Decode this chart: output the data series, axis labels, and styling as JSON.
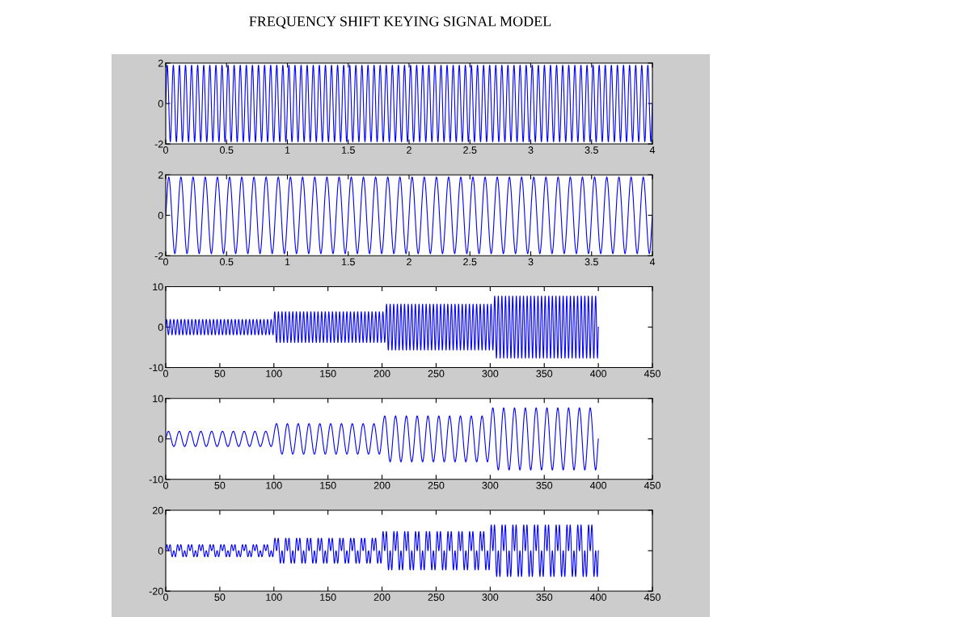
{
  "chart_data": [
    {
      "type": "line",
      "title": "FREQUENCY SHIFT KEYING SIGNAL MODEL",
      "xlim": [
        0,
        4
      ],
      "ylim": [
        -2,
        2
      ],
      "xticks": [
        0,
        0.5,
        1,
        1.5,
        2,
        2.5,
        3,
        3.5,
        4
      ],
      "yticks": [
        -2,
        0,
        2
      ],
      "line_style": "solid",
      "x": [
        0,
        0.0125,
        0.0375,
        0.0625,
        0.0875,
        0.1125,
        0.1375,
        0.1625,
        0.1875,
        0.2125,
        0.2375,
        0.2625,
        0.2875,
        0.3125,
        0.3375,
        0.3625,
        0.3875,
        0.4125,
        0.4375,
        0.4625,
        0.4875,
        0.5125,
        0.5375,
        0.5625,
        0.5875,
        0.6125,
        0.6375,
        0.6625,
        0.6875,
        0.7125,
        0.7375,
        0.7625,
        0.7875,
        0.8125,
        0.8375,
        0.8625,
        0.8875,
        0.9125,
        0.9375,
        0.9625,
        0.9875,
        1.0125,
        1.0375,
        1.0625,
        1.0875,
        1.1125,
        1.1375,
        1.1625,
        1.1875,
        1.2125,
        1.2375,
        1.2625,
        1.2875,
        1.3125,
        1.3375,
        1.3625,
        1.3875,
        1.4125,
        1.4375,
        1.4625,
        1.4875,
        1.5125,
        1.5375,
        1.5625,
        1.5875,
        1.6125,
        1.6375,
        1.6625,
        1.6875,
        1.7125,
        1.7375,
        1.7625,
        1.7875,
        1.8125,
        1.8375,
        1.8625,
        1.8875,
        1.9125,
        1.9375,
        1.9625,
        1.9875,
        2.0125,
        2.0375,
        2.0625,
        2.0875,
        2.1125,
        2.1375,
        2.1625,
        2.1875,
        2.2125,
        2.2375,
        2.2625,
        2.2875,
        2.3125,
        2.3375,
        2.3625,
        2.3875,
        2.4125,
        2.4375,
        2.4625,
        2.4875,
        2.5125,
        2.5375,
        2.5625,
        2.5875,
        2.6125,
        2.6375,
        2.6625,
        2.6875,
        2.7125,
        2.7375,
        2.7625,
        2.7875,
        2.8125,
        2.8375,
        2.8625,
        2.8875,
        2.9125,
        2.9375,
        2.9625,
        2.9875,
        3.0125,
        3.0375,
        3.0625,
        3.0875,
        3.1125,
        3.1375,
        3.1625,
        3.1875,
        3.2125,
        3.2375,
        3.2625,
        3.2875,
        3.3125,
        3.3375,
        3.3625,
        3.3875,
        3.4125,
        3.4375,
        3.4625,
        3.4875,
        3.5125,
        3.5375,
        3.5625,
        3.5875,
        3.6125,
        3.6375,
        3.6625,
        3.6875,
        3.7125,
        3.7375,
        3.7625,
        3.7875,
        3.8125,
        3.8375,
        3.8625,
        3.8875,
        3.9125,
        3.9375,
        3.9625,
        3.9875,
        4
      ],
      "series": [
        {
          "color": "#0000ff",
          "values": [
            0,
            1.9,
            -1.9,
            1.9,
            -1.9,
            1.9,
            -1.9,
            1.9,
            -1.9,
            1.9,
            -1.9,
            1.9,
            -1.9,
            1.9,
            -1.9,
            1.9,
            -1.9,
            1.9,
            -1.9,
            1.9,
            -1.9,
            1.9,
            -1.9,
            1.9,
            -1.9,
            1.9,
            -1.9,
            1.9,
            -1.9,
            1.9,
            -1.9,
            1.9,
            -1.9,
            1.9,
            -1.9,
            1.9,
            -1.9,
            1.9,
            -1.9,
            1.9,
            -1.9,
            1.9,
            -1.9,
            1.9,
            -1.9,
            1.9,
            -1.9,
            1.9,
            -1.9,
            1.9,
            -1.9,
            1.9,
            -1.9,
            1.9,
            -1.9,
            1.9,
            -1.9,
            1.9,
            -1.9,
            1.9,
            -1.9,
            1.9,
            -1.9,
            1.9,
            -1.9,
            1.9,
            -1.9,
            1.9,
            -1.9,
            1.9,
            -1.9,
            1.9,
            -1.9,
            1.9,
            -1.9,
            1.9,
            -1.9,
            1.9,
            -1.9,
            1.9,
            -1.9,
            1.9,
            -1.9,
            1.9,
            -1.9,
            1.9,
            -1.9,
            1.9,
            -1.9,
            1.9,
            -1.9,
            1.9,
            -1.9,
            1.9,
            -1.9,
            1.9,
            -1.9,
            1.9,
            -1.9,
            1.9,
            -1.9,
            1.9,
            -1.9,
            1.9,
            -1.9,
            1.9,
            -1.9,
            1.9,
            -1.9,
            1.9,
            -1.9,
            1.9,
            -1.9,
            1.9,
            -1.9,
            1.9,
            -1.9,
            1.9,
            -1.9,
            1.9,
            -1.9,
            1.9,
            -1.9,
            1.9,
            -1.9,
            1.9,
            -1.9,
            1.9,
            -1.9,
            1.9,
            -1.9,
            1.9,
            -1.9,
            1.9,
            -1.9,
            1.9,
            -1.9,
            1.9,
            -1.9,
            1.9,
            -1.9,
            1.9,
            -1.9,
            1.9,
            -1.9,
            1.9,
            -1.9,
            1.9,
            -1.9,
            1.9,
            -1.9,
            1.9,
            -1.9,
            1.9,
            -1.9,
            1.9,
            -1.9,
            1.9,
            -1.9,
            1.9,
            -1.9,
            0
          ]
        }
      ]
    },
    {
      "type": "line",
      "xlim": [
        0,
        4
      ],
      "ylim": [
        -2,
        2
      ],
      "xticks": [
        0,
        0.5,
        1,
        1.5,
        2,
        2.5,
        3,
        3.5,
        4
      ],
      "yticks": [
        -2,
        0,
        2
      ],
      "line_style": "solid",
      "x": [
        0,
        0.025,
        0.075,
        0.125,
        0.175,
        0.225,
        0.275,
        0.325,
        0.375,
        0.425,
        0.475,
        0.525,
        0.575,
        0.625,
        0.675,
        0.725,
        0.775,
        0.825,
        0.875,
        0.925,
        0.975,
        1.025,
        1.075,
        1.125,
        1.175,
        1.225,
        1.275,
        1.325,
        1.375,
        1.425,
        1.475,
        1.525,
        1.575,
        1.625,
        1.675,
        1.725,
        1.775,
        1.825,
        1.875,
        1.925,
        1.975,
        2.025,
        2.075,
        2.125,
        2.175,
        2.225,
        2.275,
        2.325,
        2.375,
        2.425,
        2.475,
        2.525,
        2.575,
        2.625,
        2.675,
        2.725,
        2.775,
        2.825,
        2.875,
        2.925,
        2.975,
        3.025,
        3.075,
        3.125,
        3.175,
        3.225,
        3.275,
        3.325,
        3.375,
        3.425,
        3.475,
        3.525,
        3.575,
        3.625,
        3.675,
        3.725,
        3.775,
        3.825,
        3.875,
        3.925,
        3.975,
        4
      ],
      "series": [
        {
          "color": "#0000ff",
          "values": [
            0,
            1.9,
            -1.9,
            1.9,
            -1.9,
            1.9,
            -1.9,
            1.9,
            -1.9,
            1.9,
            -1.9,
            1.9,
            -1.9,
            1.9,
            -1.9,
            1.9,
            -1.9,
            1.9,
            -1.9,
            1.9,
            -1.9,
            1.9,
            -1.9,
            1.9,
            -1.9,
            1.9,
            -1.9,
            1.9,
            -1.9,
            1.9,
            -1.9,
            1.9,
            -1.9,
            1.9,
            -1.9,
            1.9,
            -1.9,
            1.9,
            -1.9,
            1.9,
            -1.9,
            1.9,
            -1.9,
            1.9,
            -1.9,
            1.9,
            -1.9,
            1.9,
            -1.9,
            1.9,
            -1.9,
            1.9,
            -1.9,
            1.9,
            -1.9,
            1.9,
            -1.9,
            1.9,
            -1.9,
            1.9,
            -1.9,
            1.9,
            -1.9,
            1.9,
            -1.9,
            1.9,
            -1.9,
            1.9,
            -1.9,
            1.9,
            -1.9,
            1.9,
            -1.9,
            1.9,
            -1.9,
            1.9,
            -1.9,
            1.9,
            -1.9,
            1.9,
            -1.9,
            0
          ]
        }
      ]
    },
    {
      "type": "line",
      "xlim": [
        0,
        450
      ],
      "ylim": [
        -10,
        10
      ],
      "xticks": [
        0,
        50,
        100,
        150,
        200,
        250,
        300,
        350,
        400,
        450
      ],
      "yticks": [
        -10,
        0,
        10
      ],
      "line_style": "solid",
      "x": [
        0,
        0.8,
        2.5,
        4.2,
        5.8,
        7.5,
        9.2,
        10.8,
        12.5,
        14.2,
        15.8,
        17.5,
        19.2,
        20.8,
        22.5,
        24.2,
        25.8,
        27.5,
        29.2,
        30.8,
        32.5,
        34.2,
        35.8,
        37.5,
        39.2,
        40.8,
        42.5,
        44.2,
        45.8,
        47.5,
        49.2,
        50.8,
        52.5,
        54.2,
        55.8,
        57.5,
        59.2,
        60.8,
        62.5,
        64.2,
        65.8,
        67.5,
        69.2,
        70.8,
        72.5,
        74.2,
        75.8,
        77.5,
        79.2,
        80.8,
        82.5,
        84.2,
        85.8,
        87.5,
        89.2,
        90.8,
        92.5,
        94.2,
        95.8,
        97.5,
        99.2,
        100.8,
        102.5,
        104.2,
        105.8,
        107.5,
        109.2,
        110.8,
        112.5,
        114.2,
        115.8,
        117.5,
        119.2,
        120.8,
        122.5,
        124.2,
        125.8,
        127.5,
        129.2,
        130.8,
        132.5,
        134.2,
        135.8,
        137.5,
        139.2,
        140.8,
        142.5,
        144.2,
        145.8,
        147.5,
        149.2,
        150.8,
        152.5,
        154.2,
        155.8,
        157.5,
        159.2,
        160.8,
        162.5,
        164.2,
        165.8,
        167.5,
        169.2,
        170.8,
        172.5,
        174.2,
        175.8,
        177.5,
        179.2,
        180.8,
        182.5,
        184.2,
        185.8,
        187.5,
        189.2,
        190.8,
        192.5,
        194.2,
        195.8,
        197.5,
        199.2,
        200.8,
        202.5,
        204.2,
        205.8,
        207.5,
        209.2,
        210.8,
        212.5,
        214.2,
        215.8,
        217.5,
        219.2,
        220.8,
        222.5,
        224.2,
        225.8,
        227.5,
        229.2,
        230.8,
        232.5,
        234.2,
        235.8,
        237.5,
        239.2,
        240.8,
        242.5,
        244.2,
        245.8,
        247.5,
        249.2,
        250.8,
        252.5,
        254.2,
        255.8,
        257.5,
        259.2,
        260.8,
        262.5,
        264.2,
        265.8,
        267.5,
        269.2,
        270.8,
        272.5,
        274.2,
        275.8,
        277.5,
        279.2,
        280.8,
        282.5,
        284.2,
        285.8,
        287.5,
        289.2,
        290.8,
        292.5,
        294.2,
        295.8,
        297.5,
        299.2,
        300.8,
        302.5,
        304.2,
        305.8,
        307.5,
        309.2,
        310.8,
        312.5,
        314.2,
        315.8,
        317.5,
        319.2,
        320.8,
        322.5,
        324.2,
        325.8,
        327.5,
        329.2,
        330.8,
        332.5,
        334.2,
        335.8,
        337.5,
        339.2,
        340.8,
        342.5,
        344.2,
        345.8,
        347.5,
        349.2,
        350.8,
        352.5,
        354.2,
        355.8,
        357.5,
        359.2,
        360.8,
        362.5,
        364.2,
        365.8,
        367.5,
        369.2,
        370.8,
        372.5,
        374.2,
        375.8,
        377.5,
        379.2,
        380.8,
        382.5,
        384.2,
        385.8,
        387.5,
        389.2,
        390.8,
        392.5,
        394.2,
        395.8,
        397.5,
        399.2,
        400
      ],
      "series": [
        {
          "color": "#0000ff",
          "values": [
            0,
            1.9,
            -1.9,
            1.9,
            -1.9,
            1.9,
            -1.9,
            1.9,
            -1.9,
            1.9,
            -1.9,
            1.9,
            -1.9,
            1.9,
            -1.9,
            1.9,
            -1.9,
            1.9,
            -1.9,
            1.9,
            -1.9,
            1.9,
            -1.9,
            1.9,
            -1.9,
            1.9,
            -1.9,
            1.9,
            -1.9,
            1.9,
            -1.9,
            1.9,
            -1.9,
            1.9,
            -1.9,
            1.9,
            -1.9,
            1.9,
            -1.9,
            1.9,
            -1.9,
            1.9,
            -1.9,
            1.9,
            -1.9,
            1.9,
            -1.9,
            1.9,
            -1.9,
            1.9,
            -1.9,
            1.9,
            -1.9,
            1.9,
            -1.9,
            1.9,
            -1.9,
            1.9,
            -1.9,
            1.9,
            -1.9,
            3.8,
            -3.8,
            3.8,
            -3.8,
            3.8,
            -3.8,
            3.8,
            -3.8,
            3.8,
            -3.8,
            3.8,
            -3.8,
            3.8,
            -3.8,
            3.8,
            -3.8,
            3.8,
            -3.8,
            3.8,
            -3.8,
            3.8,
            -3.8,
            3.8,
            -3.8,
            3.8,
            -3.8,
            3.8,
            -3.8,
            3.8,
            -3.8,
            3.8,
            -3.8,
            3.8,
            -3.8,
            3.8,
            -3.8,
            3.8,
            -3.8,
            3.8,
            -3.8,
            3.8,
            -3.8,
            3.8,
            -3.8,
            3.8,
            -3.8,
            3.8,
            -3.8,
            3.8,
            -3.8,
            3.8,
            -3.8,
            3.8,
            -3.8,
            3.8,
            -3.8,
            3.8,
            -3.8,
            3.8,
            -3.8,
            3.8,
            -3.8,
            5.7,
            -5.7,
            5.7,
            -5.7,
            5.7,
            -5.7,
            5.7,
            -5.7,
            5.7,
            -5.7,
            5.7,
            -5.7,
            5.7,
            -5.7,
            5.7,
            -5.7,
            5.7,
            -5.7,
            5.7,
            -5.7,
            5.7,
            -5.7,
            5.7,
            -5.7,
            5.7,
            -5.7,
            5.7,
            -5.7,
            5.7,
            -5.7,
            5.7,
            -5.7,
            5.7,
            -5.7,
            5.7,
            -5.7,
            5.7,
            -5.7,
            5.7,
            -5.7,
            5.7,
            -5.7,
            5.7,
            -5.7,
            5.7,
            -5.7,
            5.7,
            -5.7,
            5.7,
            -5.7,
            5.7,
            -5.7,
            5.7,
            -5.7,
            5.7,
            -5.7,
            5.7,
            -5.7,
            5.7,
            -5.7,
            7.7,
            -7.7,
            7.7,
            -7.7,
            7.7,
            -7.7,
            7.7,
            -7.7,
            7.7,
            -7.7,
            7.7,
            -7.7,
            7.7,
            -7.7,
            7.7,
            -7.7,
            7.7,
            -7.7,
            7.7,
            -7.7,
            7.7,
            -7.7,
            7.7,
            -7.7,
            7.7,
            -7.7,
            7.7,
            -7.7,
            7.7,
            -7.7,
            7.7,
            -7.7,
            7.7,
            -7.7,
            7.7,
            -7.7,
            7.7,
            -7.7,
            7.7,
            -7.7,
            7.7,
            -7.7,
            7.7,
            -7.7,
            7.7,
            -7.7,
            7.7,
            -7.7,
            7.7,
            -7.7,
            7.7,
            -7.7,
            7.7,
            -7.7,
            7.7,
            -7.7,
            7.7,
            -7.7,
            0
          ]
        }
      ]
    },
    {
      "type": "line",
      "xlim": [
        0,
        450
      ],
      "ylim": [
        -10,
        10
      ],
      "xticks": [
        0,
        50,
        100,
        150,
        200,
        250,
        300,
        350,
        400,
        450
      ],
      "yticks": [
        -10,
        0,
        10
      ],
      "line_style": "solid",
      "x": [
        0,
        2.5,
        7.5,
        12.5,
        17.5,
        22.5,
        27.5,
        32.5,
        37.5,
        42.5,
        47.5,
        52.5,
        57.5,
        62.5,
        67.5,
        72.5,
        77.5,
        82.5,
        87.5,
        92.5,
        97.5,
        102.5,
        107.5,
        112.5,
        117.5,
        122.5,
        127.5,
        132.5,
        137.5,
        142.5,
        147.5,
        152.5,
        157.5,
        162.5,
        167.5,
        172.5,
        177.5,
        182.5,
        187.5,
        192.5,
        197.5,
        202.5,
        207.5,
        212.5,
        217.5,
        222.5,
        227.5,
        232.5,
        237.5,
        242.5,
        247.5,
        252.5,
        257.5,
        262.5,
        267.5,
        272.5,
        277.5,
        282.5,
        287.5,
        292.5,
        297.5,
        302.5,
        307.5,
        312.5,
        317.5,
        322.5,
        327.5,
        332.5,
        337.5,
        342.5,
        347.5,
        352.5,
        357.5,
        362.5,
        367.5,
        372.5,
        377.5,
        382.5,
        387.5,
        392.5,
        397.5,
        400
      ],
      "series": [
        {
          "color": "#0000ff",
          "values": [
            0,
            1.9,
            -1.9,
            1.9,
            -1.9,
            1.9,
            -1.9,
            1.9,
            -1.9,
            1.9,
            -1.9,
            1.9,
            -1.9,
            1.9,
            -1.9,
            1.9,
            -1.9,
            1.9,
            -1.9,
            1.9,
            -1.9,
            3.8,
            -3.8,
            3.8,
            -3.8,
            3.8,
            -3.8,
            3.8,
            -3.8,
            3.8,
            -3.8,
            3.8,
            -3.8,
            3.8,
            -3.8,
            3.8,
            -3.8,
            3.8,
            -3.8,
            3.8,
            -3.8,
            5.7,
            -5.7,
            5.7,
            -5.7,
            5.7,
            -5.7,
            5.7,
            -5.7,
            5.7,
            -5.7,
            5.7,
            -5.7,
            5.7,
            -5.7,
            5.7,
            -5.7,
            5.7,
            -5.7,
            5.7,
            -5.7,
            7.7,
            -7.7,
            7.7,
            -7.7,
            7.7,
            -7.7,
            7.7,
            -7.7,
            7.7,
            -7.7,
            7.7,
            -7.7,
            7.7,
            -7.7,
            7.7,
            -7.7,
            7.7,
            -7.7,
            7.7,
            -7.7,
            0
          ]
        }
      ]
    },
    {
      "type": "line",
      "xlim": [
        0,
        450
      ],
      "ylim": [
        -20,
        20
      ],
      "xticks": [
        0,
        50,
        100,
        150,
        200,
        250,
        300,
        350,
        400,
        450
      ],
      "yticks": [
        -20,
        0,
        20
      ],
      "line_style": "solid",
      "x": [
        0,
        1,
        2.5,
        4,
        6,
        7.5,
        9,
        11,
        12.5,
        14,
        16,
        17.5,
        19,
        21,
        22.5,
        24,
        26,
        27.5,
        29,
        31,
        32.5,
        34,
        36,
        37.5,
        39,
        41,
        42.5,
        44,
        46,
        47.5,
        49,
        51,
        52.5,
        54,
        56,
        57.5,
        59,
        61,
        62.5,
        64,
        66,
        67.5,
        69,
        71,
        72.5,
        74,
        76,
        77.5,
        79,
        81,
        82.5,
        84,
        86,
        87.5,
        89,
        91,
        92.5,
        94,
        96,
        97.5,
        99,
        101,
        102.5,
        104,
        106,
        107.5,
        109,
        111,
        112.5,
        114,
        116,
        117.5,
        119,
        121,
        122.5,
        124,
        126,
        127.5,
        129,
        131,
        132.5,
        134,
        136,
        137.5,
        139,
        141,
        142.5,
        144,
        146,
        147.5,
        149,
        151,
        152.5,
        154,
        156,
        157.5,
        159,
        161,
        162.5,
        164,
        166,
        167.5,
        169,
        171,
        172.5,
        174,
        176,
        177.5,
        179,
        181,
        182.5,
        184,
        186,
        187.5,
        189,
        191,
        192.5,
        194,
        196,
        197.5,
        199,
        201,
        202.5,
        204,
        206,
        207.5,
        209,
        211,
        212.5,
        214,
        216,
        217.5,
        219,
        221,
        222.5,
        224,
        226,
        227.5,
        229,
        231,
        232.5,
        234,
        236,
        237.5,
        239,
        241,
        242.5,
        244,
        246,
        247.5,
        249,
        251,
        252.5,
        254,
        256,
        257.5,
        259,
        261,
        262.5,
        264,
        266,
        267.5,
        269,
        271,
        272.5,
        274,
        276,
        277.5,
        279,
        281,
        282.5,
        284,
        286,
        287.5,
        289,
        291,
        292.5,
        294,
        296,
        297.5,
        299,
        301,
        302.5,
        304,
        306,
        307.5,
        309,
        311,
        312.5,
        314,
        316,
        317.5,
        319,
        321,
        322.5,
        324,
        326,
        327.5,
        329,
        331,
        332.5,
        334,
        336,
        337.5,
        339,
        341,
        342.5,
        344,
        346,
        347.5,
        349,
        351,
        352.5,
        354,
        356,
        357.5,
        359,
        361,
        362.5,
        364,
        366,
        367.5,
        369,
        371,
        372.5,
        374,
        376,
        377.5,
        379,
        381,
        382.5,
        384,
        386,
        387.5,
        389,
        391,
        392.5,
        394,
        396,
        397.5,
        399,
        400
      ],
      "series": [
        {
          "color": "#0000ff",
          "values": [
            0,
            3,
            0,
            3,
            -3,
            0,
            -3,
            3,
            0,
            3,
            -3,
            0,
            -3,
            3,
            0,
            3,
            -3,
            0,
            -3,
            3,
            0,
            3,
            -3,
            0,
            -3,
            3,
            0,
            3,
            -3,
            0,
            -3,
            3,
            0,
            3,
            -3,
            0,
            -3,
            3,
            0,
            3,
            -3,
            0,
            -3,
            3,
            0,
            3,
            -3,
            0,
            -3,
            3,
            0,
            3,
            -3,
            0,
            -3,
            3,
            0,
            3,
            -3,
            0,
            -3,
            6.2,
            0,
            6.2,
            -6.2,
            0,
            -6.2,
            6.2,
            0,
            6.2,
            -6.2,
            0,
            -6.2,
            6.2,
            0,
            6.2,
            -6.2,
            0,
            -6.2,
            6.2,
            0,
            6.2,
            -6.2,
            0,
            -6.2,
            6.2,
            0,
            6.2,
            -6.2,
            0,
            -6.2,
            6.2,
            0,
            6.2,
            -6.2,
            0,
            -6.2,
            6.2,
            0,
            6.2,
            -6.2,
            0,
            -6.2,
            6.2,
            0,
            6.2,
            -6.2,
            0,
            -6.2,
            6.2,
            0,
            6.2,
            -6.2,
            0,
            -6.2,
            6.2,
            0,
            6.2,
            -6.2,
            0,
            -6.2,
            9.5,
            0,
            9.5,
            -9.5,
            0,
            -9.5,
            9.5,
            0,
            9.5,
            -9.5,
            0,
            -9.5,
            9.5,
            0,
            9.5,
            -9.5,
            0,
            -9.5,
            9.5,
            0,
            9.5,
            -9.5,
            0,
            -9.5,
            9.5,
            0,
            9.5,
            -9.5,
            0,
            -9.5,
            9.5,
            0,
            9.5,
            -9.5,
            0,
            -9.5,
            9.5,
            0,
            9.5,
            -9.5,
            0,
            -9.5,
            9.5,
            0,
            9.5,
            -9.5,
            0,
            -9.5,
            9.5,
            0,
            9.5,
            -9.5,
            0,
            -9.5,
            9.5,
            0,
            9.5,
            -9.5,
            0,
            -9.5,
            12.8,
            0,
            12.8,
            -12.8,
            0,
            -12.8,
            12.8,
            0,
            12.8,
            -12.8,
            0,
            -12.8,
            12.8,
            0,
            12.8,
            -12.8,
            0,
            -12.8,
            12.8,
            0,
            12.8,
            -12.8,
            0,
            -12.8,
            12.8,
            0,
            12.8,
            -12.8,
            0,
            -12.8,
            12.8,
            0,
            12.8,
            -12.8,
            0,
            -12.8,
            12.8,
            0,
            12.8,
            -12.8,
            0,
            -12.8,
            12.8,
            0,
            12.8,
            -12.8,
            0,
            -12.8,
            12.8,
            0,
            12.8,
            -12.8,
            0,
            -12.8,
            12.8,
            0,
            12.8,
            -12.8,
            0,
            -12.8,
            0
          ]
        }
      ]
    }
  ]
}
